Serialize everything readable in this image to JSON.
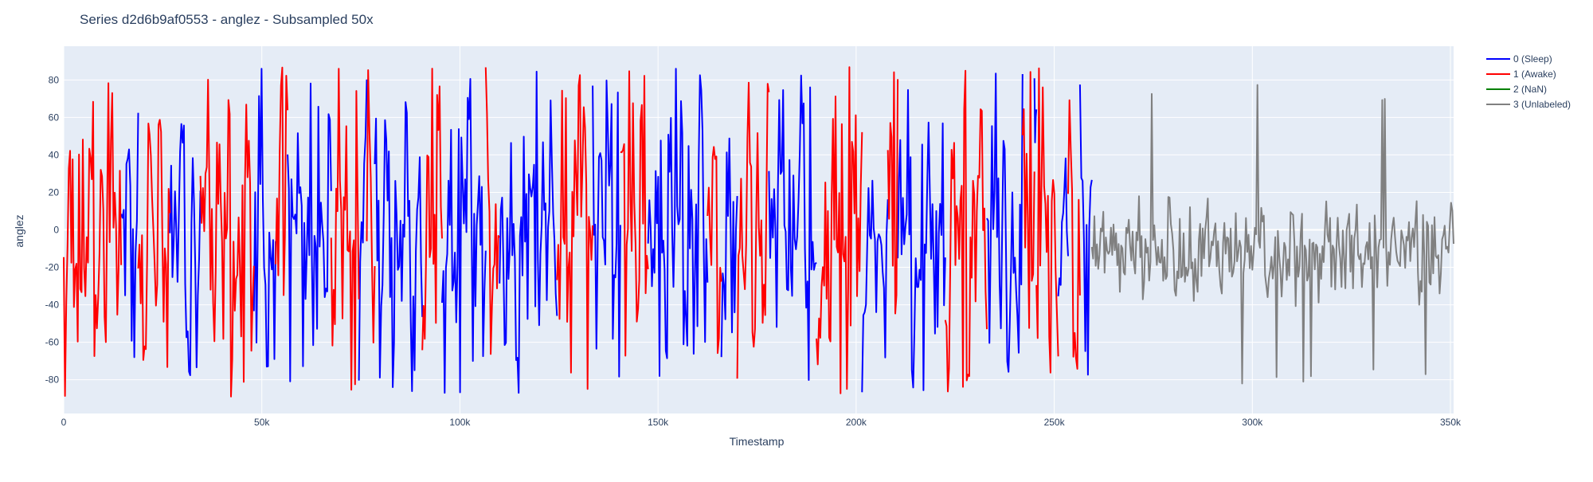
{
  "chart_data": {
    "type": "line",
    "title": "Series d2d6b9af0553 - anglez - Subsampled 50x",
    "xlabel": "Timestamp",
    "ylabel": "anglez",
    "xlim": [
      0,
      350800
    ],
    "ylim": [
      -98,
      98
    ],
    "x_ticks": [
      {
        "value": 0,
        "label": "0"
      },
      {
        "value": 50000,
        "label": "50k"
      },
      {
        "value": 100000,
        "label": "100k"
      },
      {
        "value": 150000,
        "label": "150k"
      },
      {
        "value": 200000,
        "label": "200k"
      },
      {
        "value": 250000,
        "label": "250k"
      },
      {
        "value": 300000,
        "label": "300k"
      },
      {
        "value": 350000,
        "label": "350k"
      }
    ],
    "y_ticks": [
      -80,
      -60,
      -40,
      -20,
      0,
      20,
      40,
      60,
      80
    ],
    "grid": true,
    "legend_position": "top-right",
    "plot_background": "#e5ecf6",
    "series": [
      {
        "name": "0 (Sleep)",
        "color": "#0000ff",
        "segments": [
          [
            14500,
            18800
          ],
          [
            26800,
            34500
          ],
          [
            48000,
            53500
          ],
          [
            56500,
            67500
          ],
          [
            74500,
            76500
          ],
          [
            78500,
            90500
          ],
          [
            95500,
            106500
          ],
          [
            110000,
            124500
          ],
          [
            133500,
            140500
          ],
          [
            147500,
            162500
          ],
          [
            166000,
            170000
          ],
          [
            178000,
            190000
          ],
          [
            201500,
            208000
          ],
          [
            210500,
            222500
          ],
          [
            233000,
            242000
          ],
          [
            245000,
            245500
          ],
          [
            251000,
            253500
          ],
          [
            256500,
            259500
          ]
        ],
        "values": [
          -10,
          30,
          -60,
          45,
          -20,
          60,
          -75,
          10,
          -40,
          70,
          -85,
          20,
          -55,
          40,
          -30,
          80,
          -65,
          5,
          -45,
          55,
          -80,
          25,
          -15,
          65,
          -70,
          35,
          -50,
          50,
          -25,
          75,
          -85,
          15
        ],
        "range": [
          -87,
          86
        ]
      },
      {
        "name": "1 (Awake)",
        "color": "#ff0000",
        "segments": [
          [
            0,
            14500
          ],
          [
            18800,
            26800
          ],
          [
            34500,
            48000
          ],
          [
            53500,
            56500
          ],
          [
            67500,
            74500
          ],
          [
            76500,
            78500
          ],
          [
            90500,
            95500
          ],
          [
            106500,
            110000
          ],
          [
            124500,
            133500
          ],
          [
            140500,
            147500
          ],
          [
            162500,
            166000
          ],
          [
            170000,
            178000
          ],
          [
            190000,
            201500
          ],
          [
            208000,
            210500
          ],
          [
            222500,
            233000
          ],
          [
            242000,
            245000
          ],
          [
            245500,
            251000
          ],
          [
            253500,
            256500
          ]
        ],
        "values": [
          -20,
          40,
          -60,
          20,
          -35,
          55,
          -75,
          5,
          -45,
          65,
          -30,
          30,
          -80,
          50,
          -10,
          70,
          -55,
          15,
          -40,
          60,
          -85,
          25,
          -25,
          80,
          -65,
          10
        ],
        "range": [
          -89,
          87
        ]
      },
      {
        "name": "2 (NaN)",
        "color": "#008000",
        "segments": [],
        "values": []
      },
      {
        "name": "3 (Unlabeled)",
        "color": "#808080",
        "segments": [
          [
            259500,
            350800
          ]
        ],
        "values": [
          -15,
          -30,
          -10,
          -25,
          -5,
          -35,
          -20,
          -12,
          -28,
          5,
          -40,
          -18,
          -8,
          -32,
          -22,
          0,
          -45,
          -16,
          -26,
          -10,
          -38,
          -20,
          5,
          -30
        ],
        "range": [
          -87,
          80
        ]
      }
    ]
  }
}
